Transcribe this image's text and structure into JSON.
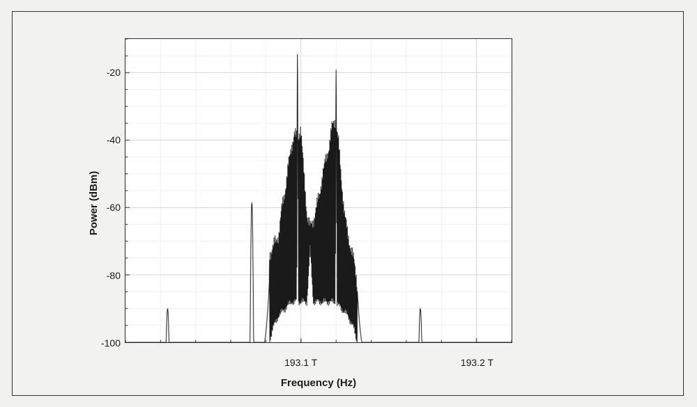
{
  "spectrum_chart": {
    "type": "line",
    "xlabel": "Frequency (Hz)",
    "ylabel": "Power (dBm)",
    "label_fontsize": 15,
    "label_fontweight": "bold",
    "tick_fontsize": 14,
    "xlim": [
      193.0,
      193.22
    ],
    "ylim": [
      -100,
      -10
    ],
    "y_ticks": [
      -20,
      -40,
      -60,
      -80,
      -100
    ],
    "x_ticks_major": [
      193.1,
      193.2
    ],
    "x_ticks_minor_step": 0.02,
    "x_tick_unit_suffix": " T",
    "background_color": "#ffffff",
    "outer_background_color": "#f2f2f0",
    "grid_major_color": "#c8c8c8",
    "grid_minor_color": "#e4e4e4",
    "axis_color": "#2b2b2b",
    "line_color": "#1a1a1a",
    "line_width": 1.0,
    "peaks": [
      {
        "freq": 193.024,
        "power": -90,
        "width": 0.0008
      },
      {
        "freq": 193.072,
        "power": -58.5,
        "width": 0.001
      },
      {
        "freq": 193.098,
        "power": -14,
        "width": 0.0004
      },
      {
        "freq": 193.12,
        "power": -19,
        "width": 0.0004
      },
      {
        "freq": 193.168,
        "power": -90,
        "width": 0.0008
      }
    ],
    "center_block": {
      "freq_lo": 193.082,
      "freq_hi": 193.132,
      "top_envelope": [
        -74,
        -72,
        -70,
        -68,
        -60,
        -55,
        -48,
        -42,
        -38,
        -40,
        -36,
        -50,
        -62,
        -66,
        -64,
        -60,
        -56,
        -50,
        -46,
        -42,
        -36,
        -34,
        -40,
        -52,
        -62,
        -68,
        -72,
        -76,
        -82
      ],
      "bottom_envelope": [
        -100,
        -96,
        -94,
        -92,
        -91,
        -90,
        -89,
        -88,
        -88,
        -88,
        -88,
        -88,
        -88,
        -72,
        -88,
        -88,
        -88,
        -88,
        -88,
        -88,
        -88,
        -88,
        -89,
        -90,
        -91,
        -92,
        -94,
        -96,
        -100
      ]
    },
    "noise_floor": -100
  }
}
